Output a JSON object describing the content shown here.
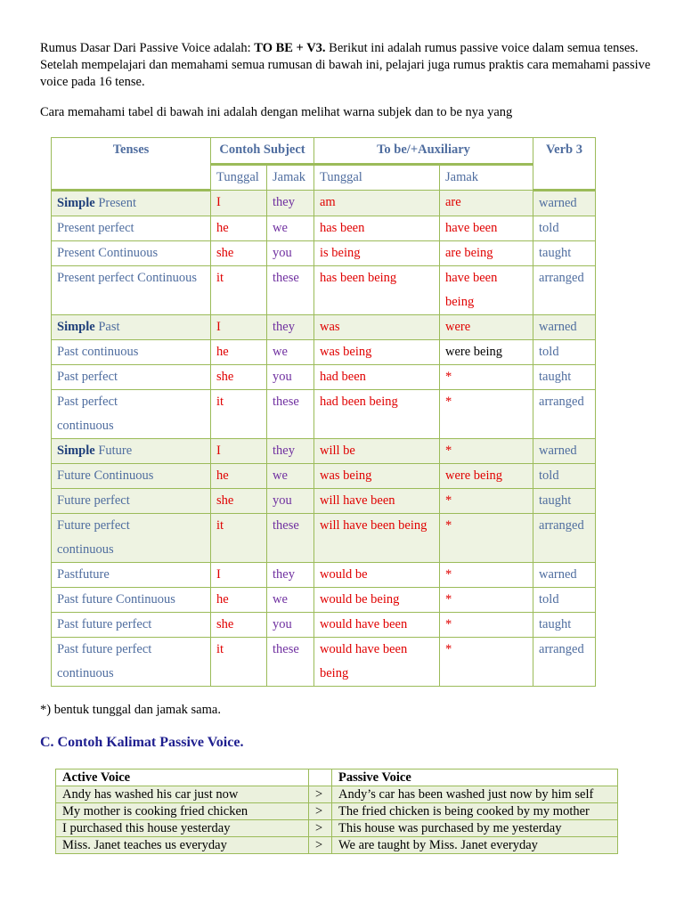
{
  "intro": {
    "lead": "Rumus Dasar Dari Passive Voice adalah:  ",
    "formula": "TO BE + V3.",
    "rest": " Berikut ini adalah rumus passive voice dalam semua tenses. Setelah mempelajari dan memahami semua rumusan di bawah ini, pelajari juga rumus praktis cara memahami passive voice pada 16 tense.",
    "note": "Cara memahami tabel di bawah ini adalah dengan melihat warna subjek dan to be nya yang"
  },
  "table": {
    "headers": [
      "Tenses",
      "Contoh Subject",
      "To be/+Auxiliary",
      "Verb 3"
    ],
    "subheaders": [
      "Tunggal",
      "Jamak",
      "Tunggal",
      "Jamak"
    ],
    "rows": [
      [
        [
          "Simple",
          "Present"
        ],
        "I",
        "they",
        "am",
        "are",
        "warned"
      ],
      [
        "Present perfect",
        "he",
        "we",
        "has been",
        "have been",
        "told"
      ],
      [
        "Present Continuous",
        "she",
        "you",
        "is being",
        "are being",
        "taught"
      ],
      [
        "Present perfect Continuous",
        "it",
        "these",
        "has been being",
        "have been being",
        "arranged"
      ],
      [
        [
          "Simple",
          "Past"
        ],
        "I",
        "they",
        "was",
        "were",
        "warned"
      ],
      [
        "Past continuous",
        "he",
        "we",
        "was being",
        "were being",
        "told"
      ],
      [
        "Past perfect",
        "she",
        "you",
        "had been",
        "*",
        "taught"
      ],
      [
        "Past perfect continuous",
        "it",
        "these",
        "had been being",
        "*",
        "arranged"
      ],
      [
        [
          "Simple",
          "Future"
        ],
        "I",
        "they",
        "will be",
        "*",
        "warned"
      ],
      [
        "Future Continuous",
        "he",
        "we",
        "was being",
        "were being",
        "told"
      ],
      [
        "Future perfect",
        "she",
        "you",
        "will have been",
        "*",
        "taught"
      ],
      [
        "Future perfect continuous",
        "it",
        "these",
        "will have been being",
        "*",
        "arranged"
      ],
      [
        "Pastfuture",
        "I",
        "they",
        "would be",
        "*",
        "warned"
      ],
      [
        "Past future Continuous",
        "he",
        "we",
        "would be being",
        "*",
        "told"
      ],
      [
        "Past future perfect",
        "she",
        "you",
        "would have been",
        "*",
        "taught"
      ],
      [
        "Past future perfect continuous",
        "it",
        "these",
        "would have been being",
        "*",
        "arranged"
      ]
    ]
  },
  "footnote": "*) bentuk tunggal dan jamak sama.",
  "section": {
    "title": "C. Contoh Kalimat Passive Voice."
  },
  "examples": {
    "headers": [
      "Active Voice",
      "Passive Voice"
    ],
    "rows": [
      [
        "Andy has washed his car just now",
        ">",
        "Andy’s car has been washed just now by him self"
      ],
      [
        "My mother is cooking fried chicken",
        ">",
        "The fried chicken is being cooked by my mother"
      ],
      [
        "I purchased this house yesterday",
        ">",
        "This house was purchased by me yesterday"
      ],
      [
        "Miss. Janet teaches us everyday",
        ">",
        "We are taught by Miss. Janet everyday"
      ]
    ]
  }
}
